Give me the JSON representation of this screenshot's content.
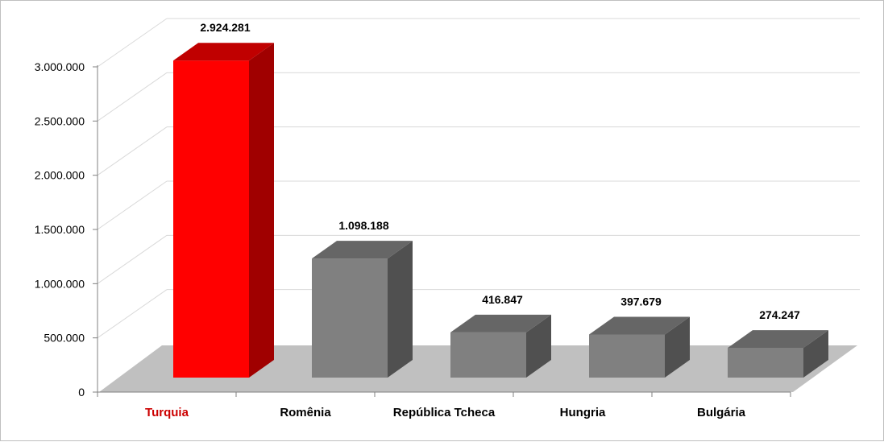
{
  "chart_data": {
    "type": "bar",
    "style": "3d-column",
    "categories": [
      "Turquia",
      "Romênia",
      "República Tcheca",
      "Hungria",
      "Bulgária"
    ],
    "values": [
      2924281,
      1098188,
      416847,
      397679,
      274247
    ],
    "value_labels": [
      "2.924.281",
      "1.098.188",
      "416.847",
      "397.679",
      "274.247"
    ],
    "y_ticks": [
      0,
      500000,
      1000000,
      1500000,
      2000000,
      2500000,
      3000000
    ],
    "y_tick_labels": [
      "0",
      "500.000",
      "1.000.000",
      "1.500.000",
      "2.000.000",
      "2.500.000",
      "3.000.000"
    ],
    "ylim": [
      0,
      3000000
    ],
    "grid": true,
    "legend": "none",
    "highlight_index": 0,
    "colors": {
      "highlight_front": "#ff0000",
      "highlight_top": "#c00000",
      "highlight_side": "#a00000",
      "highlight_label": "#cc0000",
      "bar_front": "#808080",
      "bar_top": "#666666",
      "bar_side": "#505050",
      "floor": "#c0c0c0",
      "grid": "#d9d9d9"
    }
  }
}
